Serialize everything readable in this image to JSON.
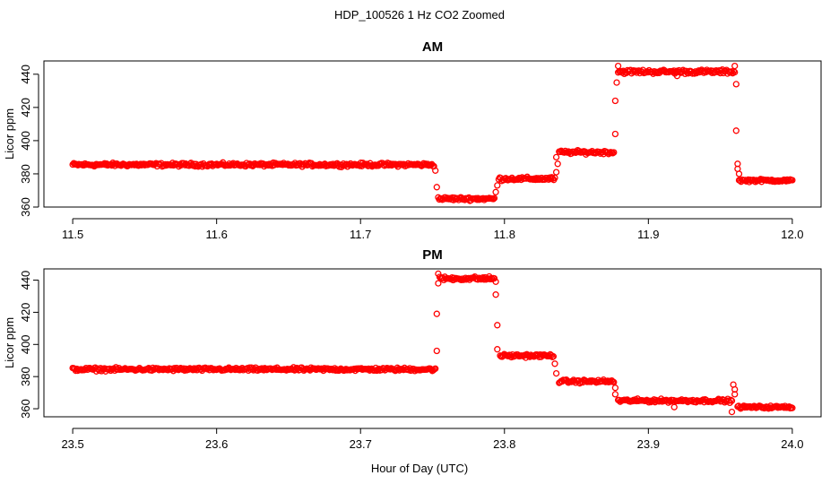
{
  "suptitle": "HDP_100526  1 Hz CO2 Zoomed",
  "xlabel": "Hour of Day (UTC)",
  "colors": {
    "points": "#ff0000",
    "axes": "#000000"
  },
  "chart_data": [
    {
      "type": "scatter",
      "title": "AM",
      "xlabel": "Hour of Day (UTC)",
      "ylabel": "Licor ppm",
      "xlim": [
        11.48,
        12.02
      ],
      "ylim": [
        360,
        448
      ],
      "xticks": [
        "11.5",
        "11.6",
        "11.7",
        "11.8",
        "11.9",
        "12.0"
      ],
      "yticks": [
        "360",
        "380",
        "400",
        "420",
        "440"
      ],
      "series": [
        {
          "marker": "open-circle",
          "segments": [
            {
              "x0": 11.5,
              "x1": 11.751,
              "y": 385.5,
              "noise": 1.0
            },
            {
              "x0": 11.754,
              "x1": 11.793,
              "y": 365,
              "noise": 1.0
            },
            {
              "x0": 11.796,
              "x1": 11.835,
              "y": 377,
              "noise": 1.0
            },
            {
              "x0": 11.838,
              "x1": 11.876,
              "y": 393,
              "noise": 1.0
            },
            {
              "x0": 11.879,
              "x1": 11.96,
              "y": 441.5,
              "noise": 1.2
            },
            {
              "x0": 11.963,
              "x1": 12.0,
              "y": 376,
              "noise": 0.8
            }
          ],
          "transition_points": [
            {
              "x": 11.752,
              "y": 382
            },
            {
              "x": 11.753,
              "y": 372
            },
            {
              "x": 11.794,
              "y": 369
            },
            {
              "x": 11.795,
              "y": 373
            },
            {
              "x": 11.836,
              "y": 381
            },
            {
              "x": 11.837,
              "y": 386
            },
            {
              "x": 11.836,
              "y": 390
            },
            {
              "x": 11.877,
              "y": 404
            },
            {
              "x": 11.877,
              "y": 424
            },
            {
              "x": 11.878,
              "y": 435
            },
            {
              "x": 11.879,
              "y": 445
            },
            {
              "x": 11.96,
              "y": 445
            },
            {
              "x": 11.961,
              "y": 434
            },
            {
              "x": 11.961,
              "y": 406
            },
            {
              "x": 11.962,
              "y": 386
            },
            {
              "x": 11.962,
              "y": 383
            },
            {
              "x": 11.963,
              "y": 380
            },
            {
              "x": 11.92,
              "y": 439
            }
          ]
        }
      ]
    },
    {
      "type": "scatter",
      "title": "PM",
      "xlabel": "Hour of Day (UTC)",
      "ylabel": "Licor ppm",
      "xlim": [
        23.48,
        24.02
      ],
      "ylim": [
        355,
        447
      ],
      "xticks": [
        "23.5",
        "23.6",
        "23.7",
        "23.8",
        "23.9",
        "24.0"
      ],
      "yticks": [
        "360",
        "380",
        "400",
        "420",
        "440"
      ],
      "series": [
        {
          "marker": "open-circle",
          "segments": [
            {
              "x0": 23.5,
              "x1": 23.752,
              "y": 384.5,
              "noise": 1.0
            },
            {
              "x0": 23.755,
              "x1": 23.793,
              "y": 441,
              "noise": 1.2
            },
            {
              "x0": 23.797,
              "x1": 23.834,
              "y": 393,
              "noise": 1.0
            },
            {
              "x0": 23.838,
              "x1": 23.876,
              "y": 377,
              "noise": 1.0
            },
            {
              "x0": 23.879,
              "x1": 23.958,
              "y": 365,
              "noise": 1.0
            },
            {
              "x0": 23.962,
              "x1": 24.0,
              "y": 361,
              "noise": 0.8
            }
          ],
          "transition_points": [
            {
              "x": 23.753,
              "y": 396
            },
            {
              "x": 23.753,
              "y": 419
            },
            {
              "x": 23.754,
              "y": 438
            },
            {
              "x": 23.754,
              "y": 444
            },
            {
              "x": 23.794,
              "y": 439
            },
            {
              "x": 23.794,
              "y": 431
            },
            {
              "x": 23.795,
              "y": 412
            },
            {
              "x": 23.795,
              "y": 397
            },
            {
              "x": 23.835,
              "y": 388
            },
            {
              "x": 23.836,
              "y": 382
            },
            {
              "x": 23.877,
              "y": 373
            },
            {
              "x": 23.877,
              "y": 369
            },
            {
              "x": 23.959,
              "y": 375
            },
            {
              "x": 23.96,
              "y": 372
            },
            {
              "x": 23.96,
              "y": 369
            },
            {
              "x": 23.958,
              "y": 358
            },
            {
              "x": 23.918,
              "y": 361
            }
          ]
        }
      ]
    }
  ]
}
